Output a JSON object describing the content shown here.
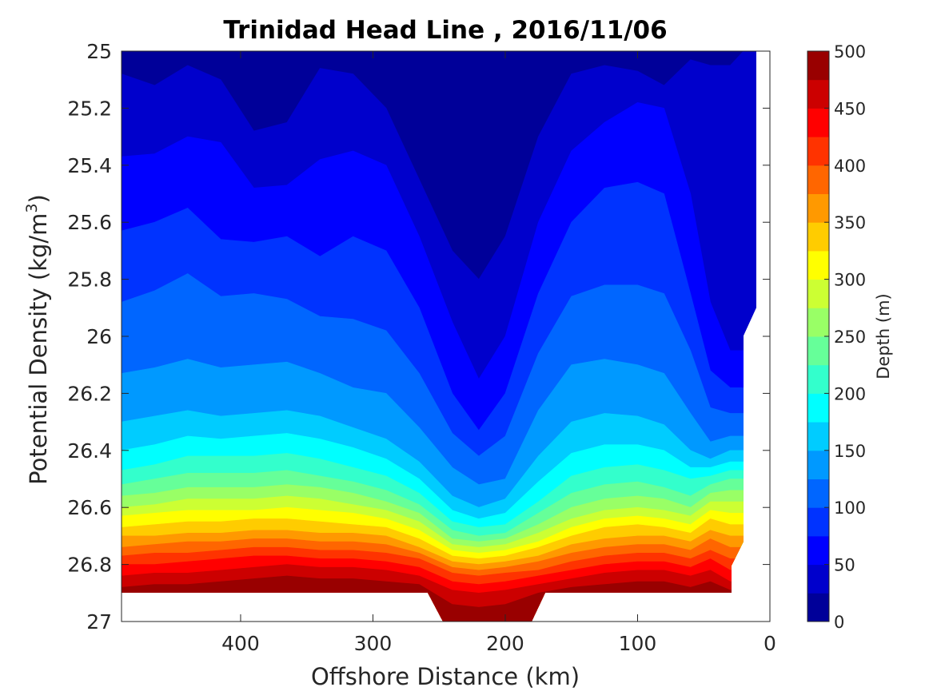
{
  "chart_data": {
    "type": "filled-contour",
    "title": "Trinidad Head Line , 2016/11/06",
    "xlabel": "Offshore Distance (km)",
    "ylabel": "Potential Density (kg/m",
    "ylabel_sup": "3",
    "ylabel_close": ")",
    "x_reversed": true,
    "y_reversed": true,
    "xlim": [
      490,
      0
    ],
    "ylim": [
      25,
      27
    ],
    "xticks": [
      400,
      300,
      200,
      100,
      0
    ],
    "xtick_labels": [
      "400",
      "300",
      "200",
      "100",
      "0"
    ],
    "yticks": [
      25,
      25.2,
      25.4,
      25.6,
      25.8,
      26,
      26.2,
      26.4,
      26.6,
      26.8,
      27
    ],
    "ytick_labels": [
      "25",
      "25.2",
      "25.4",
      "25.6",
      "25.8",
      "26",
      "26.2",
      "26.4",
      "26.6",
      "26.8",
      "27"
    ],
    "colorbar": {
      "label": "Depth (m)",
      "limits": [
        0,
        500
      ],
      "levels": [
        0,
        25,
        50,
        75,
        100,
        125,
        150,
        175,
        200,
        225,
        250,
        275,
        300,
        325,
        350,
        375,
        400,
        425,
        450,
        475,
        500
      ],
      "tick_values": [
        0,
        50,
        100,
        150,
        200,
        250,
        300,
        350,
        400,
        450,
        500
      ],
      "tick_labels": [
        "0",
        "50",
        "100",
        "150",
        "200",
        "250",
        "300",
        "350",
        "400",
        "450",
        "500"
      ],
      "colormap": "jet"
    },
    "contour_boundaries": {
      "x": [
        490,
        465,
        440,
        415,
        390,
        365,
        340,
        315,
        290,
        265,
        240,
        220,
        200,
        175,
        150,
        125,
        100,
        80,
        60,
        45,
        30,
        20,
        10
      ],
      "levels": [
        {
          "depth": 25,
          "sigma": [
            25.08,
            25.12,
            25.05,
            25.1,
            25.28,
            25.25,
            25.06,
            25.08,
            25.2,
            25.45,
            25.7,
            25.8,
            25.65,
            25.3,
            25.08,
            25.05,
            25.07,
            25.12,
            25.03,
            25.05,
            25.05,
            25.0,
            25.0
          ]
        },
        {
          "depth": 50,
          "sigma": [
            25.37,
            25.36,
            25.3,
            25.32,
            25.48,
            25.47,
            25.38,
            25.35,
            25.4,
            25.65,
            25.95,
            26.15,
            26.0,
            25.6,
            25.35,
            25.25,
            25.18,
            25.2,
            25.5,
            25.88,
            26.05,
            26.05,
            25.9
          ]
        },
        {
          "depth": 75,
          "sigma": [
            25.63,
            25.6,
            25.55,
            25.66,
            25.67,
            25.65,
            25.72,
            25.65,
            25.7,
            25.9,
            26.2,
            26.33,
            26.2,
            25.85,
            25.6,
            25.48,
            25.46,
            25.5,
            25.85,
            26.12,
            26.18,
            26.18,
            26.18
          ]
        },
        {
          "depth": 100,
          "sigma": [
            25.88,
            25.84,
            25.78,
            25.86,
            25.85,
            25.87,
            25.93,
            25.94,
            25.98,
            26.13,
            26.34,
            26.42,
            26.35,
            26.06,
            25.86,
            25.82,
            25.82,
            25.85,
            26.05,
            26.25,
            26.27,
            26.27,
            26.27
          ]
        },
        {
          "depth": 125,
          "sigma": [
            26.13,
            26.11,
            26.08,
            26.11,
            26.1,
            26.09,
            26.13,
            26.18,
            26.2,
            26.32,
            26.46,
            26.52,
            26.5,
            26.26,
            26.1,
            26.08,
            26.1,
            26.13,
            26.27,
            26.37,
            26.35,
            26.35,
            26.35
          ]
        },
        {
          "depth": 150,
          "sigma": [
            26.3,
            26.28,
            26.26,
            26.28,
            26.27,
            26.26,
            26.28,
            26.32,
            26.36,
            26.44,
            26.56,
            26.6,
            26.57,
            26.42,
            26.3,
            26.27,
            26.28,
            26.31,
            26.4,
            26.43,
            26.4,
            26.4,
            26.4
          ]
        },
        {
          "depth": 175,
          "sigma": [
            26.4,
            26.38,
            26.35,
            26.36,
            26.35,
            26.34,
            26.36,
            26.39,
            26.43,
            26.5,
            26.61,
            26.64,
            26.62,
            26.51,
            26.41,
            26.38,
            26.38,
            26.4,
            26.46,
            26.46,
            26.44,
            26.44,
            26.44
          ]
        },
        {
          "depth": 200,
          "sigma": [
            26.47,
            26.45,
            26.42,
            26.42,
            26.42,
            26.41,
            26.43,
            26.46,
            26.49,
            26.55,
            26.65,
            26.67,
            26.66,
            26.58,
            26.49,
            26.46,
            26.45,
            26.47,
            26.5,
            26.49,
            26.47,
            26.47,
            26.47
          ]
        },
        {
          "depth": 225,
          "sigma": [
            26.52,
            26.5,
            26.48,
            26.48,
            26.48,
            26.47,
            26.49,
            26.51,
            26.54,
            26.59,
            26.68,
            26.7,
            26.69,
            26.62,
            26.55,
            26.52,
            26.51,
            26.53,
            26.56,
            26.52,
            26.5,
            26.5,
            26.5
          ]
        },
        {
          "depth": 250,
          "sigma": [
            26.56,
            26.55,
            26.53,
            26.53,
            26.53,
            26.52,
            26.53,
            26.55,
            26.58,
            26.62,
            26.71,
            26.72,
            26.71,
            26.66,
            26.6,
            26.57,
            26.56,
            26.57,
            26.6,
            26.55,
            26.54,
            26.54,
            26.54
          ]
        },
        {
          "depth": 275,
          "sigma": [
            26.6,
            26.59,
            26.57,
            26.57,
            26.57,
            26.56,
            26.57,
            26.59,
            26.61,
            26.65,
            26.73,
            26.74,
            26.73,
            26.69,
            26.64,
            26.61,
            26.6,
            26.61,
            26.63,
            26.58,
            26.58,
            26.58,
            26.58
          ]
        },
        {
          "depth": 300,
          "sigma": [
            26.63,
            26.62,
            26.61,
            26.61,
            26.61,
            26.6,
            26.61,
            26.62,
            26.64,
            26.68,
            26.75,
            26.76,
            26.75,
            26.72,
            26.67,
            26.64,
            26.63,
            26.64,
            26.66,
            26.61,
            26.62,
            26.62,
            26.62
          ]
        },
        {
          "depth": 325,
          "sigma": [
            26.67,
            26.66,
            26.65,
            26.65,
            26.64,
            26.64,
            26.65,
            26.66,
            26.67,
            26.71,
            26.77,
            26.78,
            26.77,
            26.74,
            26.7,
            26.67,
            26.66,
            26.67,
            26.69,
            26.64,
            26.66,
            26.66,
            26.66
          ]
        },
        {
          "depth": 350,
          "sigma": [
            26.7,
            26.7,
            26.69,
            26.69,
            26.68,
            26.68,
            26.69,
            26.69,
            26.7,
            26.74,
            26.79,
            26.8,
            26.79,
            26.77,
            26.73,
            26.71,
            26.7,
            26.7,
            26.72,
            26.68,
            26.7,
            26.7,
            26.7
          ]
        },
        {
          "depth": 375,
          "sigma": [
            26.74,
            26.73,
            26.72,
            26.72,
            26.71,
            26.71,
            26.72,
            26.72,
            26.73,
            26.76,
            26.81,
            26.82,
            26.81,
            26.79,
            26.76,
            26.74,
            26.73,
            26.73,
            26.75,
            26.71,
            26.74,
            26.74,
            26.74
          ]
        },
        {
          "depth": 400,
          "sigma": [
            26.77,
            26.76,
            26.76,
            26.75,
            26.74,
            26.74,
            26.75,
            26.75,
            26.76,
            26.78,
            26.83,
            26.84,
            26.83,
            26.82,
            26.79,
            26.77,
            26.76,
            26.76,
            26.78,
            26.75,
            26.78,
            26.78,
            26.78
          ]
        },
        {
          "depth": 425,
          "sigma": [
            26.8,
            26.8,
            26.79,
            26.78,
            26.77,
            26.77,
            26.78,
            26.78,
            26.79,
            26.81,
            26.86,
            26.87,
            26.86,
            26.84,
            26.82,
            26.8,
            26.79,
            26.79,
            26.81,
            26.78,
            26.82,
            26.82,
            26.82
          ]
        },
        {
          "depth": 450,
          "sigma": [
            26.84,
            26.83,
            26.83,
            26.82,
            26.81,
            26.8,
            26.81,
            26.81,
            26.82,
            26.84,
            26.89,
            26.9,
            26.89,
            26.87,
            26.85,
            26.83,
            26.82,
            26.82,
            26.84,
            26.82,
            26.86,
            26.86,
            26.86
          ]
        },
        {
          "depth": 475,
          "sigma": [
            26.88,
            26.87,
            26.87,
            26.86,
            26.85,
            26.84,
            26.85,
            26.85,
            26.86,
            26.87,
            26.94,
            26.95,
            26.94,
            26.9,
            26.88,
            26.87,
            26.86,
            26.86,
            26.88,
            26.86,
            26.89,
            26.89,
            26.89
          ]
        }
      ]
    },
    "grid": false
  }
}
